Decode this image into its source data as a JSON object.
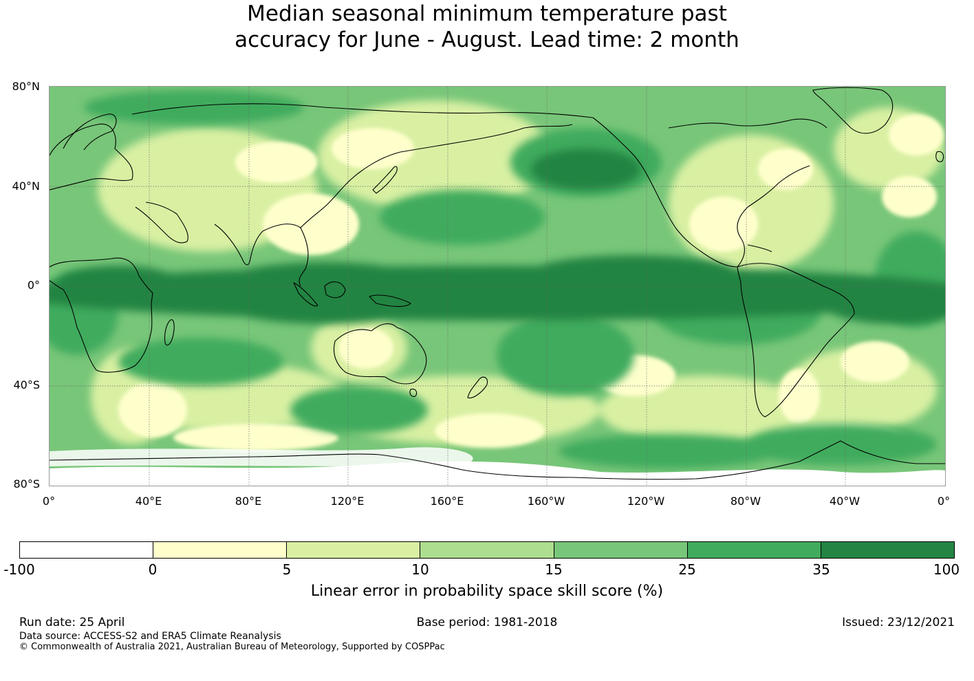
{
  "title": {
    "line1": "Median seasonal minimum temperature past",
    "line2": "accuracy for June - August. Lead time: 2 month"
  },
  "map": {
    "lat_labels": [
      "80°N",
      "40°N",
      "0°",
      "40°S",
      "80°S"
    ],
    "lon_labels": [
      "0°",
      "40°E",
      "80°E",
      "120°E",
      "160°E",
      "160°W",
      "120°W",
      "80°W",
      "40°W",
      "0°"
    ],
    "extent": {
      "lon": [
        0,
        360
      ],
      "lat": [
        -80,
        80
      ]
    },
    "gridlines": true,
    "coastlines": true
  },
  "colorbar": {
    "ticks": [
      "-100",
      "0",
      "5",
      "10",
      "15",
      "25",
      "35",
      "100"
    ],
    "colors": [
      "#ffffff",
      "#ffffcc",
      "#d9f0a3",
      "#addd8e",
      "#78c679",
      "#41ab5d",
      "#238443"
    ],
    "label": "Linear error in probability space skill score (%)"
  },
  "footer": {
    "run_date": "Run date: 25 April",
    "base_period": "Base period: 1981-2018",
    "issued": "Issued: 23/12/2021",
    "data_source": "Data source: ACCESS-S2 and ERA5 Climate Reanalysis",
    "copyright": "© Commonwealth of Australia 2021, Australian Bureau of Meteorology, Supported by COSPPac"
  }
}
